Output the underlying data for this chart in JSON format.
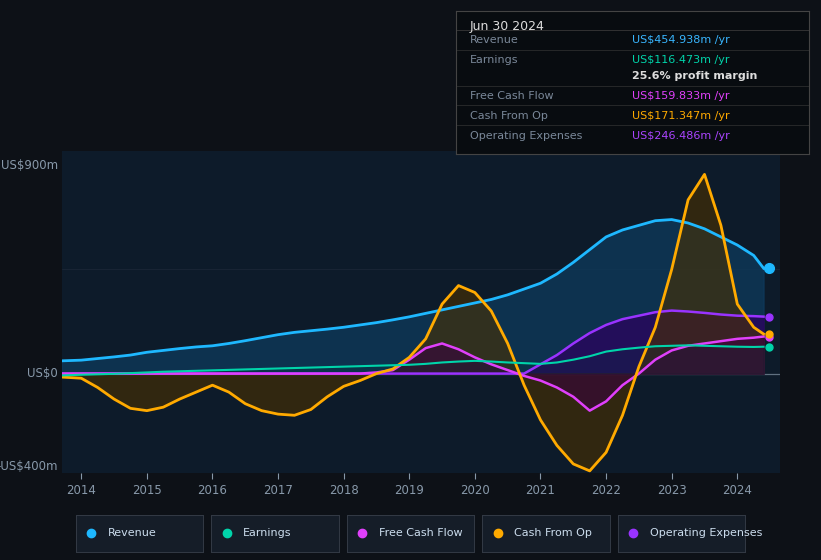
{
  "bg_color": "#0d1117",
  "plot_bg_color": "#0d1b2a",
  "title_box": {
    "date": "Jun 30 2024",
    "rows": [
      {
        "label": "Revenue",
        "value": "US$454.938m /yr",
        "value_color": "#38b6ff"
      },
      {
        "label": "Earnings",
        "value": "US$116.473m /yr",
        "value_color": "#00d4aa"
      },
      {
        "label": "",
        "value": "25.6% profit margin",
        "value_color": "#dddddd"
      },
      {
        "label": "Free Cash Flow",
        "value": "US$159.833m /yr",
        "value_color": "#e040fb"
      },
      {
        "label": "Cash From Op",
        "value": "US$171.347m /yr",
        "value_color": "#ffaa00"
      },
      {
        "label": "Operating Expenses",
        "value": "US$246.486m /yr",
        "value_color": "#aa44ff"
      }
    ]
  },
  "ylabel_top": "US$900m",
  "ylabel_zero": "US$0",
  "ylabel_bottom": "-US$400m",
  "ylim": [
    -430,
    960
  ],
  "years": [
    2013.7,
    2014.0,
    2014.25,
    2014.5,
    2014.75,
    2015.0,
    2015.25,
    2015.5,
    2015.75,
    2016.0,
    2016.25,
    2016.5,
    2016.75,
    2017.0,
    2017.25,
    2017.5,
    2017.75,
    2018.0,
    2018.25,
    2018.5,
    2018.75,
    2019.0,
    2019.25,
    2019.5,
    2019.75,
    2020.0,
    2020.25,
    2020.5,
    2020.75,
    2021.0,
    2021.25,
    2021.5,
    2021.75,
    2022.0,
    2022.25,
    2022.5,
    2022.75,
    2023.0,
    2023.25,
    2023.5,
    2023.75,
    2024.0,
    2024.25,
    2024.4
  ],
  "revenue": [
    55,
    58,
    65,
    72,
    80,
    92,
    100,
    108,
    115,
    120,
    130,
    142,
    155,
    168,
    178,
    185,
    192,
    200,
    210,
    220,
    232,
    245,
    260,
    275,
    290,
    305,
    320,
    340,
    365,
    390,
    430,
    480,
    535,
    590,
    620,
    640,
    660,
    665,
    650,
    625,
    590,
    555,
    510,
    455
  ],
  "earnings": [
    -8,
    -5,
    -3,
    -1,
    2,
    5,
    8,
    10,
    12,
    14,
    16,
    18,
    20,
    22,
    24,
    26,
    28,
    30,
    32,
    34,
    36,
    38,
    42,
    48,
    52,
    55,
    52,
    48,
    45,
    42,
    48,
    60,
    75,
    95,
    105,
    112,
    118,
    120,
    122,
    120,
    118,
    116,
    115,
    116
  ],
  "free_cash_flow": [
    0,
    0,
    0,
    0,
    0,
    0,
    0,
    0,
    0,
    0,
    0,
    0,
    0,
    0,
    0,
    0,
    0,
    0,
    0,
    5,
    15,
    60,
    110,
    130,
    105,
    70,
    40,
    15,
    -10,
    -30,
    -60,
    -100,
    -160,
    -120,
    -50,
    0,
    60,
    100,
    120,
    130,
    140,
    150,
    155,
    160
  ],
  "cash_from_op": [
    -15,
    -20,
    -60,
    -110,
    -150,
    -160,
    -145,
    -110,
    -80,
    -50,
    -80,
    -130,
    -160,
    -175,
    -180,
    -155,
    -100,
    -55,
    -30,
    0,
    20,
    70,
    150,
    300,
    380,
    350,
    270,
    130,
    -50,
    -200,
    -310,
    -390,
    -420,
    -340,
    -180,
    30,
    200,
    450,
    750,
    860,
    640,
    300,
    200,
    171
  ],
  "operating_expenses": [
    0,
    0,
    0,
    0,
    0,
    0,
    0,
    0,
    0,
    0,
    0,
    0,
    0,
    0,
    0,
    0,
    0,
    0,
    0,
    0,
    0,
    0,
    0,
    0,
    0,
    0,
    0,
    0,
    0,
    40,
    80,
    130,
    175,
    210,
    235,
    250,
    265,
    272,
    268,
    262,
    255,
    250,
    248,
    246
  ],
  "revenue_color": "#1eb8ff",
  "revenue_fill": "#0d3a5c",
  "earnings_color": "#00d4aa",
  "earnings_fill": "#003830",
  "fcf_color": "#e040fb",
  "fcf_fill": "#3d0040",
  "cfop_color": "#ffaa00",
  "cfop_fill_pos": "#4a3000",
  "cfop_fill_neg": "#3a1500",
  "opex_color": "#9933ff",
  "opex_fill": "#2d0060",
  "legend_items": [
    {
      "label": "Revenue",
      "color": "#1eb8ff"
    },
    {
      "label": "Earnings",
      "color": "#00d4aa"
    },
    {
      "label": "Free Cash Flow",
      "color": "#e040fb"
    },
    {
      "label": "Cash From Op",
      "color": "#ffaa00"
    },
    {
      "label": "Operating Expenses",
      "color": "#9933ff"
    }
  ]
}
